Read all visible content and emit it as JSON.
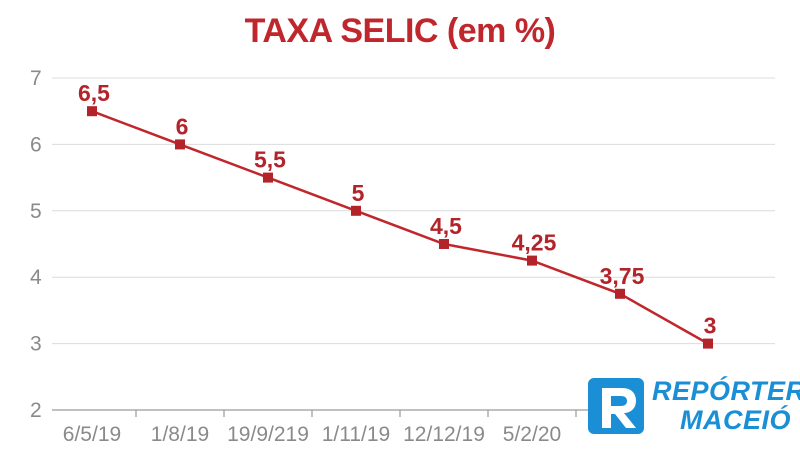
{
  "chart_data": {
    "type": "line",
    "title": "TAXA SELIC (em %)",
    "xlabel": "",
    "ylabel": "",
    "categories": [
      "6/5/19",
      "1/8/19",
      "19/9/219",
      "1/11/19",
      "12/12/19",
      "5/2/20",
      "",
      ""
    ],
    "series": [
      {
        "values": [
          6.5,
          6,
          5.5,
          5,
          4.5,
          4.25,
          3.75,
          3
        ],
        "labels": [
          "6,5",
          "6",
          "5,5",
          "5",
          "4,5",
          "4,25",
          "3,75",
          "3"
        ]
      }
    ],
    "ylim": [
      2,
      7
    ],
    "yticks": [
      "2",
      "3",
      "4",
      "5",
      "6",
      "7"
    ],
    "grid": true,
    "legend": "none",
    "colors": {
      "series": "#c0272d",
      "title": "#c0272d",
      "grid": "#dcdcdc",
      "tick": "#8a8a8a"
    }
  },
  "logo": {
    "line1": "REPÓRTER",
    "line2": "MACEIÓ",
    "color": "#1a8fd6"
  }
}
